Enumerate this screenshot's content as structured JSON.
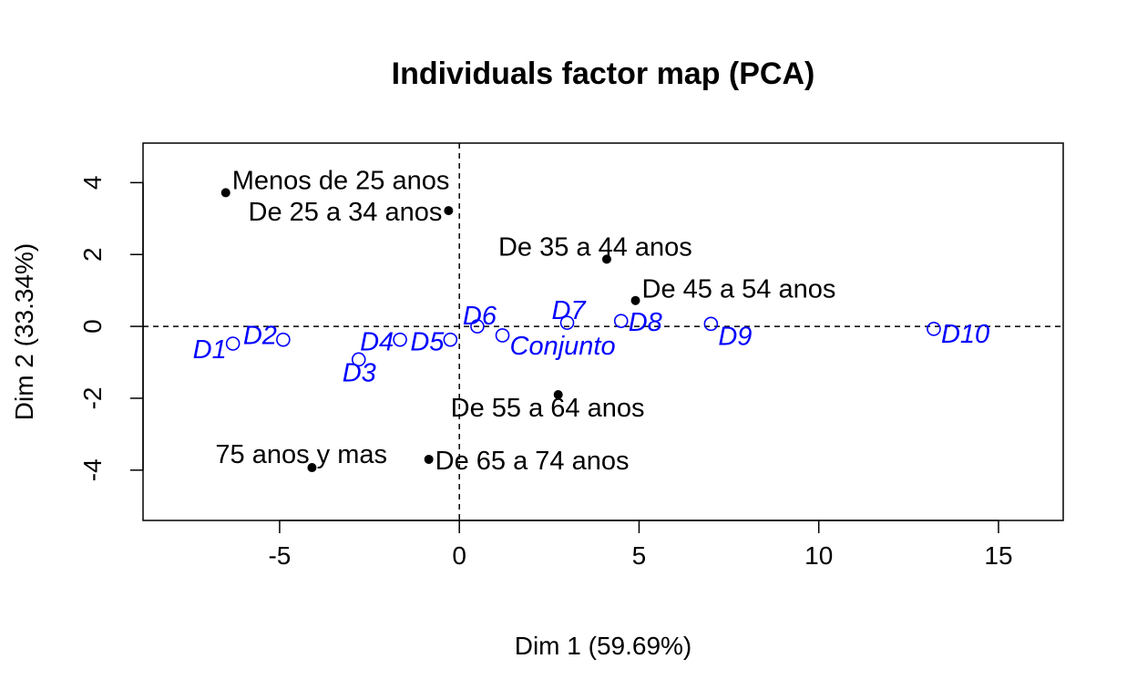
{
  "chart_data": {
    "type": "scatter",
    "title": "Individuals factor map (PCA)",
    "xlabel": "Dim 1 (59.69%)",
    "ylabel": "Dim 2 (33.34%)",
    "xlim": [
      -8.8,
      16.8
    ],
    "ylim": [
      -5.4,
      5.1
    ],
    "xticks": [
      -5,
      0,
      5,
      10,
      15
    ],
    "yticks": [
      -4,
      -2,
      0,
      2,
      4
    ],
    "grid": false,
    "reference_lines": {
      "x": 0,
      "y": 0,
      "style": "dashed"
    },
    "colors": {
      "supplementary": "#000000",
      "active": "#0000ff"
    },
    "series": [
      {
        "marker": "filled-circle",
        "points": [
          {
            "label": "Menos de 25 anos",
            "x": -6.5,
            "y": 3.72
          },
          {
            "label": "De 25 a 34 anos",
            "x": -0.3,
            "y": 3.22
          },
          {
            "label": "De 35 a 44 anos",
            "x": 4.1,
            "y": 1.87
          },
          {
            "label": "De 45 a 54 anos",
            "x": 4.9,
            "y": 0.72
          },
          {
            "label": "De 55 a 64 anos",
            "x": 2.75,
            "y": -1.9
          },
          {
            "label": "De 65 a 74 anos",
            "x": -0.85,
            "y": -3.7
          },
          {
            "label": "75 anos y mas",
            "x": -4.1,
            "y": -3.93
          }
        ]
      },
      {
        "marker": "open-circle",
        "points": [
          {
            "label": "D1",
            "x": -6.3,
            "y": -0.48
          },
          {
            "label": "D2",
            "x": -4.9,
            "y": -0.37
          },
          {
            "label": "D3",
            "x": -2.8,
            "y": -0.92
          },
          {
            "label": "D4",
            "x": -1.65,
            "y": -0.37
          },
          {
            "label": "D5",
            "x": -0.25,
            "y": -0.37
          },
          {
            "label": "D6",
            "x": 0.5,
            "y": 0.0
          },
          {
            "label": "Conjunto",
            "x": 1.2,
            "y": -0.25
          },
          {
            "label": "D7",
            "x": 3.0,
            "y": 0.1
          },
          {
            "label": "D8",
            "x": 4.5,
            "y": 0.15
          },
          {
            "label": "D9",
            "x": 7.0,
            "y": 0.07
          },
          {
            "label": "D10",
            "x": 13.2,
            "y": -0.07
          }
        ]
      }
    ]
  }
}
